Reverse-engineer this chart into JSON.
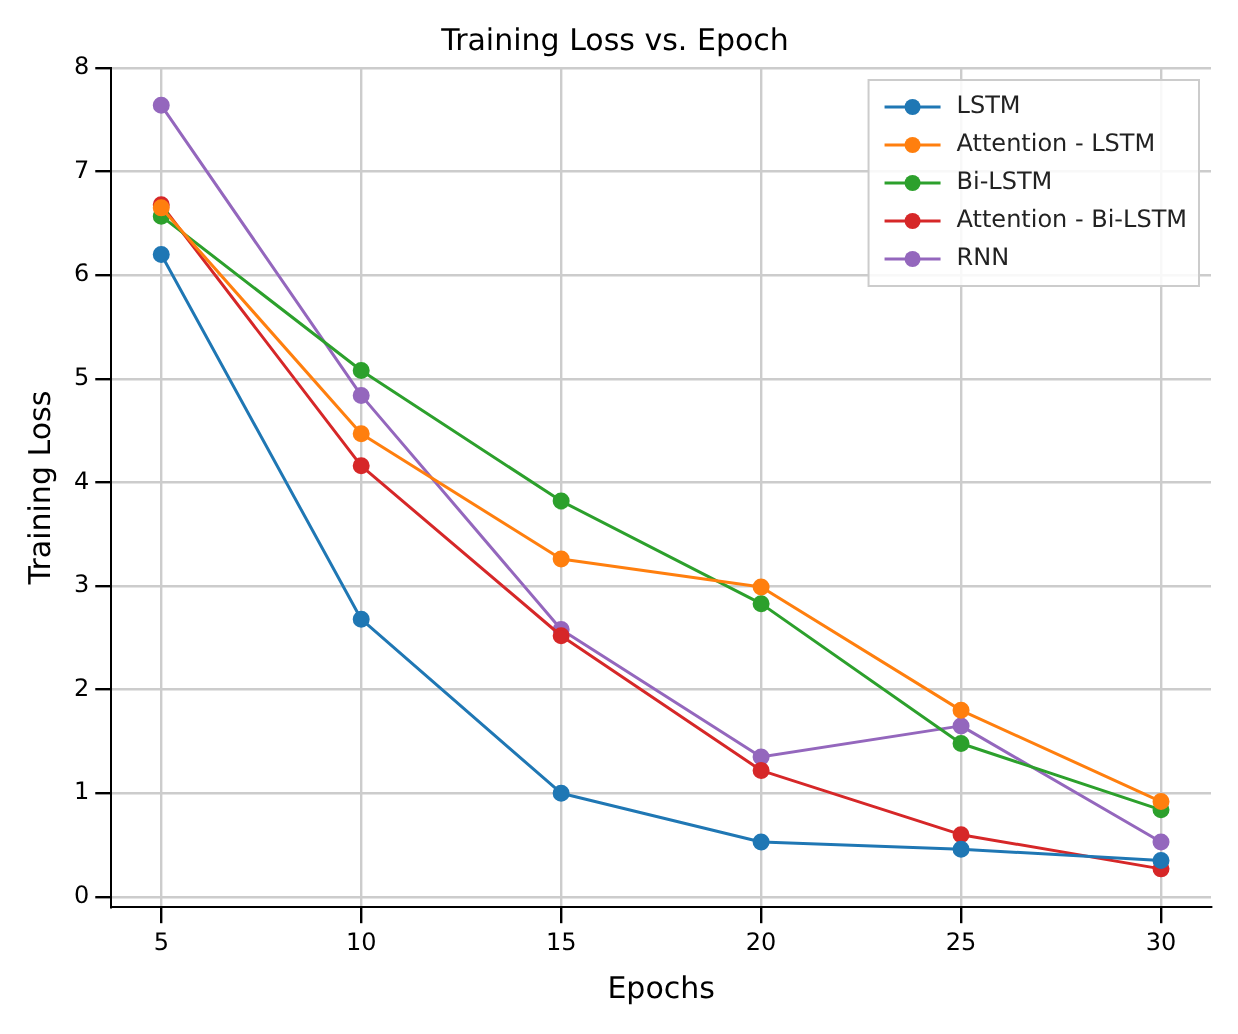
{
  "chart_data": {
    "type": "line",
    "title": "Training Loss vs. Epoch",
    "xlabel": "Epochs",
    "ylabel": "Training Loss",
    "x": [
      5,
      10,
      15,
      20,
      25,
      30
    ],
    "series": [
      {
        "name": "LSTM",
        "color": "#1f77b4",
        "values": [
          6.2,
          2.68,
          1.0,
          0.53,
          0.46,
          0.35
        ]
      },
      {
        "name": "Attention - LSTM",
        "color": "#ff7f0e",
        "values": [
          6.65,
          4.47,
          3.26,
          2.99,
          1.8,
          0.92
        ]
      },
      {
        "name": "Bi-LSTM",
        "color": "#2ca02c",
        "values": [
          6.57,
          5.08,
          3.82,
          2.83,
          1.48,
          0.84
        ]
      },
      {
        "name": "Attention - Bi-LSTM",
        "color": "#d62728",
        "values": [
          6.68,
          4.16,
          2.52,
          1.22,
          0.6,
          0.27
        ]
      },
      {
        "name": "RNN",
        "color": "#9467bd",
        "values": [
          7.64,
          4.84,
          2.58,
          1.35,
          1.65,
          0.53
        ]
      }
    ],
    "xlim": [
      3.75,
      31.25
    ],
    "xticks": [
      5,
      10,
      15,
      20,
      25,
      30
    ],
    "ylim": [
      -0.1,
      8
    ],
    "yticks": [
      0,
      1,
      2,
      3,
      4,
      5,
      6,
      7,
      8
    ],
    "grid": true,
    "legend": "top right",
    "marker": "circle",
    "line_style": "solid"
  }
}
